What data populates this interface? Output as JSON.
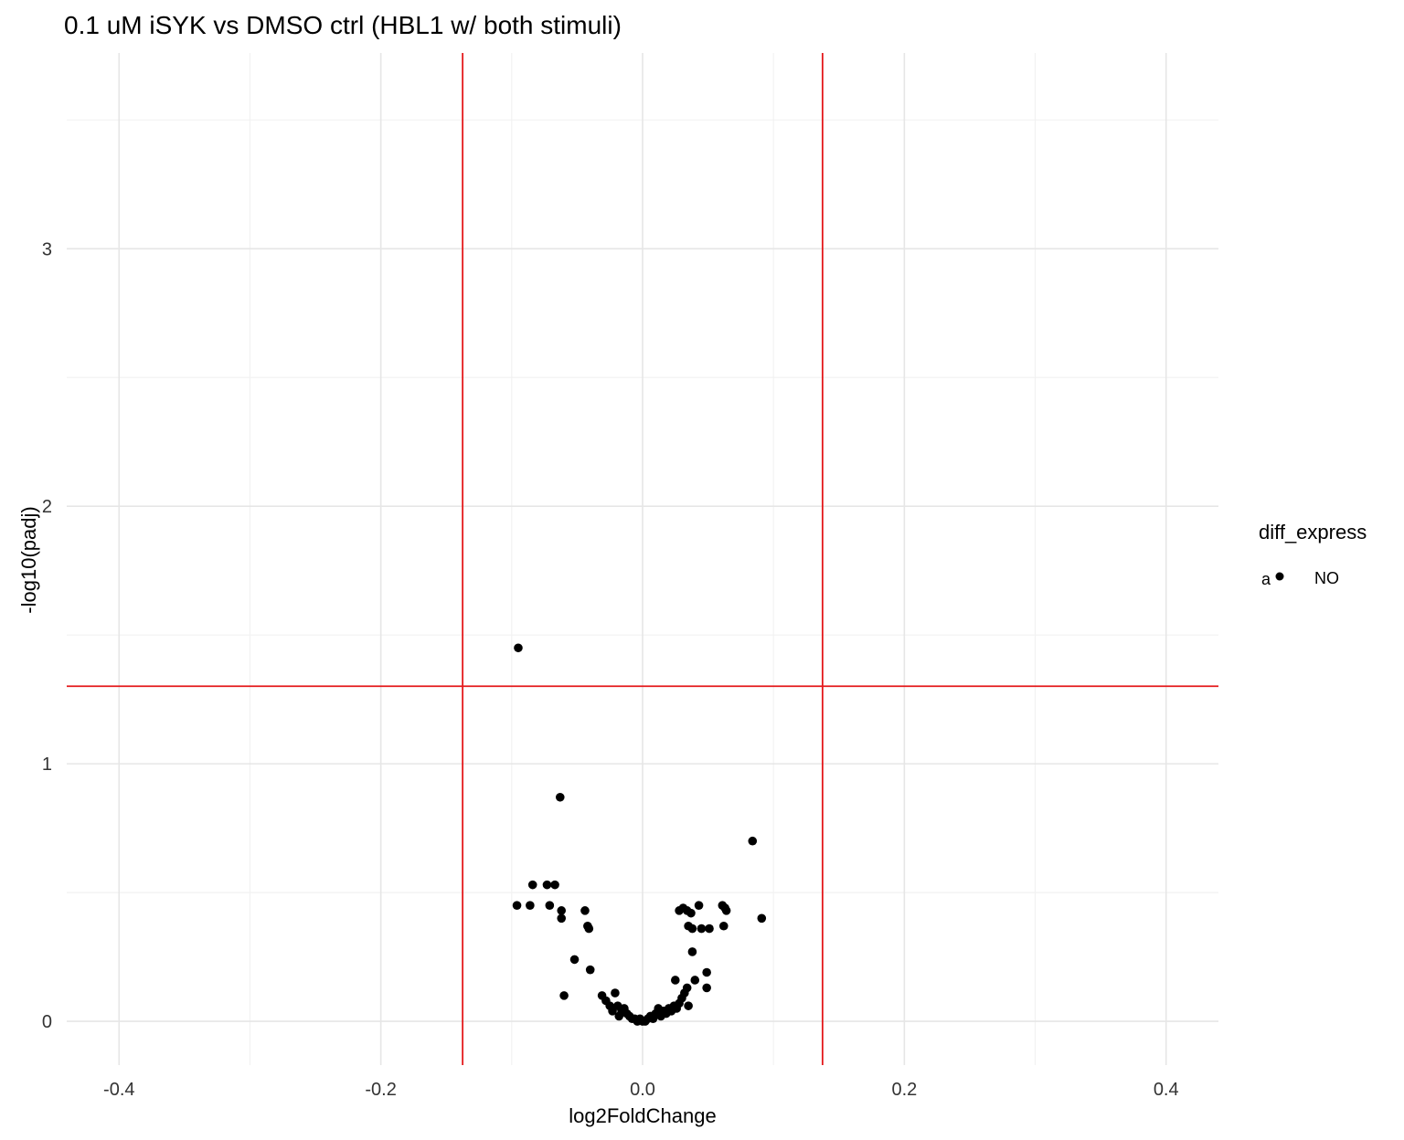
{
  "chart_data": {
    "type": "scatter",
    "title": "0.1 uM iSYK vs DMSO ctrl (HBL1 w/ both stimuli)",
    "xlabel": "log2FoldChange",
    "ylabel": "-log10(padj)",
    "xlim": [
      -0.44,
      0.44
    ],
    "ylim": [
      -0.17,
      3.76
    ],
    "x_ticks": [
      -0.4,
      -0.2,
      0.0,
      0.2,
      0.4
    ],
    "x_tick_labels": [
      "-0.4",
      "-0.2",
      "0.0",
      "0.2",
      "0.4"
    ],
    "y_ticks": [
      0,
      1,
      2,
      3
    ],
    "y_tick_labels": [
      "0",
      "1",
      "2",
      "3"
    ],
    "grid": true,
    "legend": {
      "title": "diff_express",
      "key_glyph": "a",
      "position": "right",
      "items": [
        {
          "label": "NO",
          "color": "#000000"
        }
      ]
    },
    "reference_lines": {
      "vertical": [
        -0.1375,
        0.1375
      ],
      "horizontal": [
        1.301
      ],
      "color": "#e41a1c"
    },
    "series": [
      {
        "name": "NO",
        "color": "#000000",
        "points": [
          [
            -0.095,
            1.45
          ],
          [
            -0.063,
            0.87
          ],
          [
            -0.084,
            0.53
          ],
          [
            -0.073,
            0.53
          ],
          [
            -0.067,
            0.53
          ],
          [
            -0.096,
            0.45
          ],
          [
            -0.086,
            0.45
          ],
          [
            -0.071,
            0.45
          ],
          [
            -0.062,
            0.43
          ],
          [
            -0.062,
            0.4
          ],
          [
            -0.044,
            0.43
          ],
          [
            -0.042,
            0.37
          ],
          [
            -0.041,
            0.36
          ],
          [
            -0.052,
            0.24
          ],
          [
            -0.04,
            0.2
          ],
          [
            -0.06,
            0.1
          ],
          [
            -0.031,
            0.1
          ],
          [
            -0.028,
            0.08
          ],
          [
            -0.025,
            0.06
          ],
          [
            -0.023,
            0.04
          ],
          [
            -0.021,
            0.11
          ],
          [
            -0.019,
            0.06
          ],
          [
            -0.018,
            0.02
          ],
          [
            -0.016,
            0.04
          ],
          [
            -0.014,
            0.05
          ],
          [
            -0.012,
            0.03
          ],
          [
            -0.01,
            0.02
          ],
          [
            -0.008,
            0.01
          ],
          [
            -0.006,
            0.01
          ],
          [
            -0.004,
            0.0
          ],
          [
            -0.002,
            0.01
          ],
          [
            0.0,
            0.0
          ],
          [
            0.002,
            0.0
          ],
          [
            0.004,
            0.01
          ],
          [
            0.006,
            0.02
          ],
          [
            0.008,
            0.01
          ],
          [
            0.01,
            0.03
          ],
          [
            0.012,
            0.05
          ],
          [
            0.014,
            0.02
          ],
          [
            0.016,
            0.04
          ],
          [
            0.018,
            0.03
          ],
          [
            0.02,
            0.05
          ],
          [
            0.022,
            0.04
          ],
          [
            0.024,
            0.06
          ],
          [
            0.026,
            0.05
          ],
          [
            0.028,
            0.07
          ],
          [
            0.025,
            0.16
          ],
          [
            0.03,
            0.09
          ],
          [
            0.032,
            0.11
          ],
          [
            0.034,
            0.13
          ],
          [
            0.035,
            0.06
          ],
          [
            0.038,
            0.27
          ],
          [
            0.04,
            0.16
          ],
          [
            0.049,
            0.19
          ],
          [
            0.049,
            0.13
          ],
          [
            0.028,
            0.43
          ],
          [
            0.031,
            0.44
          ],
          [
            0.034,
            0.43
          ],
          [
            0.037,
            0.42
          ],
          [
            0.035,
            0.37
          ],
          [
            0.038,
            0.36
          ],
          [
            0.045,
            0.36
          ],
          [
            0.051,
            0.36
          ],
          [
            0.043,
            0.45
          ],
          [
            0.061,
            0.45
          ],
          [
            0.063,
            0.44
          ],
          [
            0.062,
            0.37
          ],
          [
            0.064,
            0.43
          ],
          [
            0.084,
            0.7
          ],
          [
            0.091,
            0.4
          ]
        ]
      }
    ]
  }
}
